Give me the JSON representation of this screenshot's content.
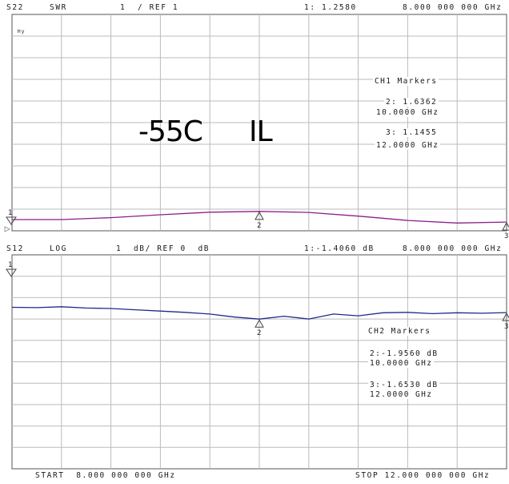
{
  "overlay": {
    "temp": "-55C",
    "meas": "IL"
  },
  "channel1": {
    "header": {
      "param": "S22",
      "format": "SWR",
      "scale": "1  / REF 1",
      "marker_readout": "1: 1.2580",
      "marker_freq": "8.000 000 000 GHz"
    },
    "small_label": "Hy",
    "markers_title": "CH1 Markers",
    "markers": [
      {
        "label": "2: 1.6362",
        "freq": "10.0000 GHz"
      },
      {
        "label": "3: 1.1455",
        "freq": "12.0000 GHz"
      }
    ],
    "marker_numbers": [
      "1",
      "2",
      "3"
    ],
    "trace_color": "#8a1f8a"
  },
  "channel2": {
    "header": {
      "param": "S12",
      "format": "LOG",
      "scale": "1  dB/ REF 0  dB",
      "marker_readout": "1:-1.4060 dB",
      "marker_freq": "8.000 000 000 GHz"
    },
    "markers_title": "CH2 Markers",
    "markers": [
      {
        "label": "2:-1.9560 dB",
        "freq": "10.0000 GHz"
      },
      {
        "label": "3:-1.6530 dB",
        "freq": "12.0000 GHz"
      }
    ],
    "marker_numbers": [
      "1",
      "2",
      "3"
    ],
    "trace_color": "#1f2a8a"
  },
  "footer": {
    "start": "START  8.000 000 000 GHz",
    "stop": "STOP 12.000 000 000 GHz"
  },
  "chart_data": [
    {
      "type": "line",
      "x_start_ghz": 8.0,
      "x_stop_ghz": 12.0,
      "y_ref": 1,
      "y_per_div": 1,
      "series": [
        {
          "x": [
            8.0,
            8.4,
            8.8,
            9.2,
            9.6,
            10.0,
            10.4,
            10.8,
            11.2,
            11.6,
            12.0
          ],
          "y": [
            1.258,
            1.26,
            1.35,
            1.48,
            1.6,
            1.636,
            1.59,
            1.42,
            1.22,
            1.1,
            1.1455
          ]
        }
      ],
      "markers": [
        {
          "n": "1",
          "x": 8.0,
          "y": 1.258
        },
        {
          "n": "2",
          "x": 10.0,
          "y": 1.6362
        },
        {
          "n": "3",
          "x": 12.0,
          "y": 1.1455
        }
      ]
    },
    {
      "type": "line",
      "x_start_ghz": 8.0,
      "x_stop_ghz": 12.0,
      "y_ref": 0,
      "y_per_div": 1,
      "series": [
        {
          "x": [
            8.0,
            8.2,
            8.4,
            8.6,
            8.8,
            9.0,
            9.2,
            9.4,
            9.6,
            9.8,
            10.0,
            10.2,
            10.4,
            10.6,
            10.8,
            11.0,
            11.2,
            11.4,
            11.6,
            11.8,
            12.0
          ],
          "y": [
            -1.406,
            -1.42,
            -1.38,
            -1.44,
            -1.46,
            -1.52,
            -1.58,
            -1.64,
            -1.72,
            -1.86,
            -1.956,
            -1.82,
            -1.95,
            -1.72,
            -1.8,
            -1.66,
            -1.64,
            -1.7,
            -1.66,
            -1.68,
            -1.653
          ]
        }
      ],
      "markers": [
        {
          "n": "1",
          "x": 8.0,
          "y": -1.406
        },
        {
          "n": "2",
          "x": 10.0,
          "y": -1.956
        },
        {
          "n": "3",
          "x": 12.0,
          "y": -1.653
        }
      ]
    }
  ]
}
